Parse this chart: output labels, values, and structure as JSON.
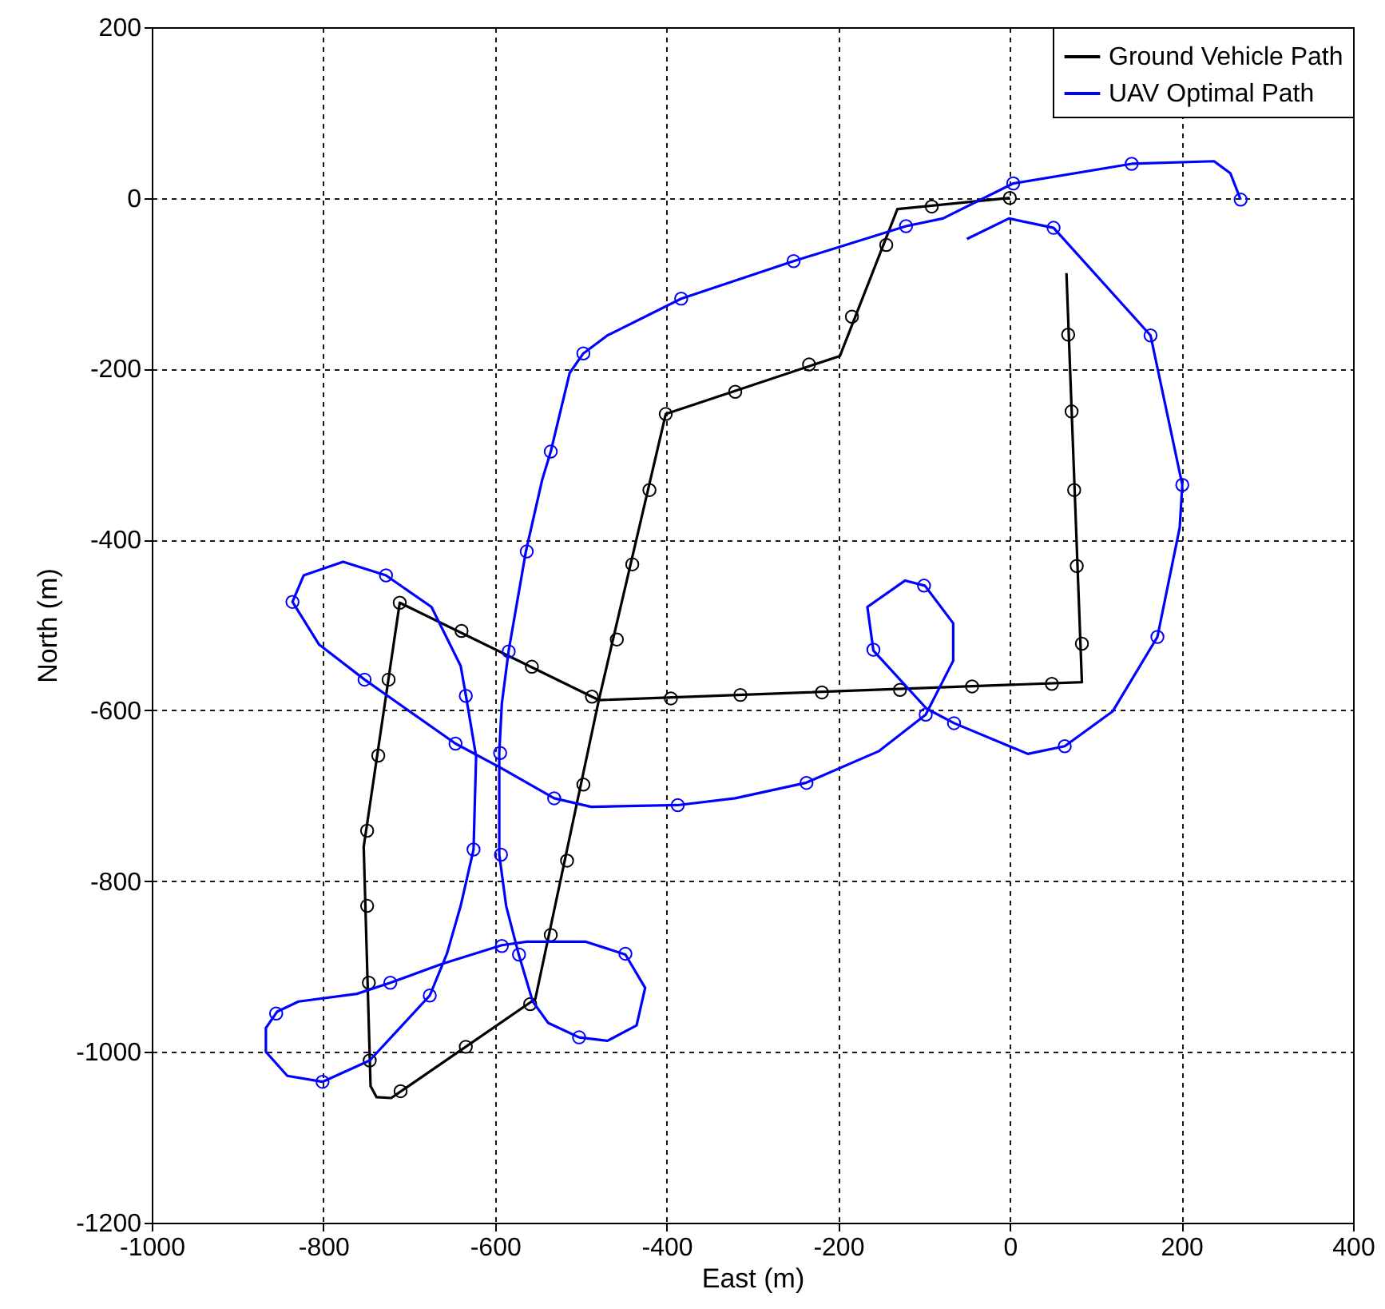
{
  "chart_data": {
    "type": "line",
    "xlabel": "East (m)",
    "ylabel": "North (m)",
    "xlim": [
      -1000,
      400
    ],
    "ylim": [
      -1200,
      200
    ],
    "xticks": [
      -1000,
      -800,
      -600,
      -400,
      -200,
      0,
      200,
      400
    ],
    "yticks": [
      -1200,
      -1000,
      -800,
      -600,
      -400,
      -200,
      0,
      200
    ],
    "grid": true,
    "legend": "top right",
    "line_style": "solid",
    "series": [
      {
        "name": "Ground Vehicle Path",
        "marker": "none",
        "color": "#000000",
        "x": [
          0,
          -131,
          -198,
          -401,
          -479,
          -553,
          -721,
          -738,
          -745,
          -753,
          -711,
          -479,
          84,
          66
        ],
        "values": [
          0,
          -13,
          -185,
          -253,
          -588,
          -938,
          -1054,
          -1053,
          -1040,
          -760,
          -474,
          -588,
          -567,
          -88
        ]
      },
      {
        "type": "scatter",
        "marker": "circle",
        "color": "#000000",
        "x": [
          0,
          -91,
          -144,
          -184,
          -234,
          -320,
          -401,
          -420,
          -440,
          -458,
          -487,
          -497,
          -516,
          -535,
          -559,
          -634,
          -710,
          -746,
          -747,
          -749,
          -749,
          -736,
          -724,
          -711,
          -639,
          -557,
          -395,
          -314,
          -219,
          -128,
          -44,
          49,
          84,
          78,
          75,
          72,
          68
        ],
        "values": [
          0,
          -10,
          -55,
          -139,
          -195,
          -227,
          -253,
          -342,
          -429,
          -517,
          -584,
          -687,
          -776,
          -863,
          -944,
          -994,
          -1046,
          -1010,
          -919,
          -829,
          -741,
          -653,
          -564,
          -474,
          -507,
          -549,
          -586,
          -582,
          -579,
          -576,
          -572,
          -569,
          -522,
          -431,
          -342,
          -250,
          -160
        ]
      },
      {
        "name": "UAV Optimal Path",
        "marker": "none",
        "color": "#0000ff",
        "x": [
          -50,
          -1,
          51,
          164,
          201,
          198,
          172,
          120,
          64,
          21,
          -65,
          -97,
          -159,
          -166,
          -122,
          -99,
          -66,
          -66,
          -98,
          -153,
          -238,
          -320,
          -387,
          -488,
          -531,
          -594,
          -646,
          -752,
          -805,
          -836,
          -823,
          -777,
          -727,
          -674,
          -640,
          -634,
          -622,
          -625,
          -640,
          -656,
          -676,
          -711,
          -746,
          -801,
          -842,
          -867,
          -867,
          -854,
          -829,
          -761,
          -722,
          -662,
          -592,
          -563,
          -494,
          -448,
          -425,
          -435,
          -469,
          -502,
          -538,
          -556,
          -572,
          -587,
          -595,
          -595,
          -592,
          -584,
          -564,
          -545,
          -535,
          -513,
          -497,
          -469,
          -383,
          -252,
          -121,
          -78,
          4,
          142,
          238,
          257,
          269
        ],
        "values": [
          -48,
          -24,
          -35,
          -161,
          -336,
          -386,
          -514,
          -601,
          -642,
          -651,
          -615,
          -598,
          -530,
          -479,
          -448,
          -454,
          -498,
          -542,
          -605,
          -648,
          -685,
          -703,
          -711,
          -713,
          -703,
          -667,
          -639,
          -564,
          -523,
          -473,
          -442,
          -426,
          -442,
          -479,
          -548,
          -582,
          -654,
          -763,
          -829,
          -885,
          -934,
          -972,
          -1010,
          -1035,
          -1028,
          -1000,
          -972,
          -953,
          -941,
          -932,
          -919,
          -897,
          -875,
          -871,
          -871,
          -886,
          -925,
          -969,
          -987,
          -983,
          -966,
          -941,
          -887,
          -829,
          -769,
          -649,
          -592,
          -530,
          -414,
          -330,
          -297,
          -205,
          -182,
          -161,
          -118,
          -74,
          -33,
          -24,
          17,
          40,
          43,
          29,
          -2
        ]
      },
      {
        "type": "scatter",
        "marker": "circle",
        "color": "#0000ff",
        "x": [
          4,
          142,
          269,
          51,
          164,
          201,
          172,
          64,
          -65,
          -98,
          -159,
          -100,
          -121,
          -252,
          -383,
          -497,
          -535,
          -563,
          -584,
          -634,
          -646,
          -594,
          -531,
          -387,
          -237,
          -727,
          -836,
          -752,
          -625,
          -593,
          -592,
          -572,
          -448,
          -502,
          -722,
          -676,
          -855,
          -801
        ],
        "values": [
          17,
          40,
          -2,
          -35,
          -161,
          -336,
          -514,
          -642,
          -615,
          -605,
          -529,
          -454,
          -33,
          -74,
          -118,
          -182,
          -297,
          -414,
          -531,
          -583,
          -639,
          -650,
          -703,
          -711,
          -685,
          -442,
          -473,
          -564,
          -763,
          -769,
          -876,
          -886,
          -885,
          -983,
          -919,
          -934,
          -955,
          -1035
        ]
      }
    ]
  }
}
